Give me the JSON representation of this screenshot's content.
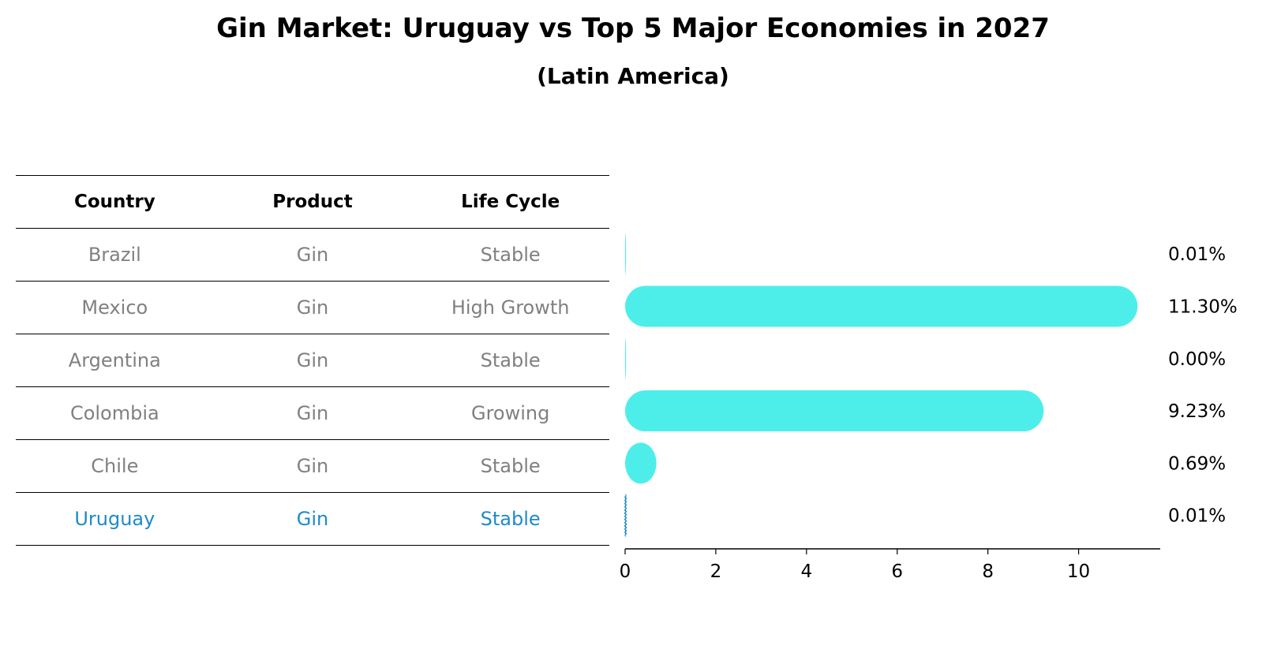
{
  "title": "Gin Market: Uruguay vs Top 5 Major Economies in 2027",
  "subtitle": "(Latin America)",
  "table": {
    "headers": [
      "Country",
      "Product",
      "Life Cycle"
    ],
    "rows": [
      {
        "country": "Brazil",
        "product": "Gin",
        "life_cycle": "Stable"
      },
      {
        "country": "Mexico",
        "product": "Gin",
        "life_cycle": "High Growth"
      },
      {
        "country": "Argentina",
        "product": "Gin",
        "life_cycle": "Stable"
      },
      {
        "country": "Colombia",
        "product": "Gin",
        "life_cycle": "Growing"
      },
      {
        "country": "Chile",
        "product": "Gin",
        "life_cycle": "Stable"
      },
      {
        "country": "Uruguay",
        "product": "Gin",
        "life_cycle": "Stable"
      }
    ]
  },
  "colors": {
    "bar": "#4deeea",
    "highlight": "#1f8ac9",
    "muted": "#808080"
  },
  "chart_data": {
    "type": "bar",
    "orientation": "horizontal",
    "categories": [
      "Brazil",
      "Mexico",
      "Argentina",
      "Colombia",
      "Chile",
      "Uruguay"
    ],
    "values": [
      0.01,
      11.3,
      0.0,
      9.23,
      0.69,
      0.01
    ],
    "value_labels": [
      "0.01%",
      "11.30%",
      "0.00%",
      "9.23%",
      "0.69%",
      "0.01%"
    ],
    "highlight": "Uruguay",
    "xlim": [
      0,
      11.8
    ],
    "xticks": [
      0,
      2,
      4,
      6,
      8,
      10
    ],
    "grid": false,
    "legend": "none"
  }
}
